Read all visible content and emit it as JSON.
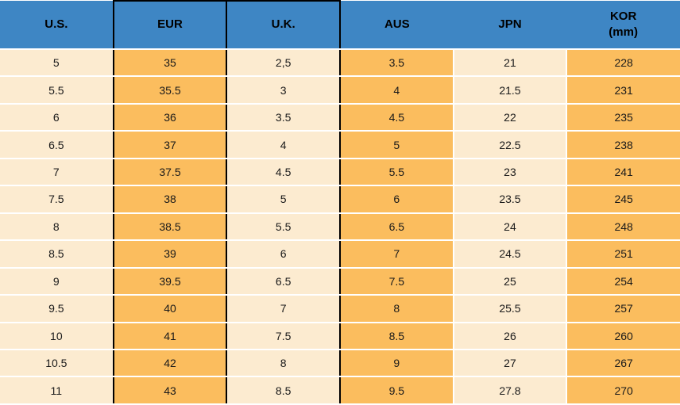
{
  "colors": {
    "header_bg": "#3E86C4",
    "cream_cell": "#FCEBD0",
    "orange_cell": "#FBBD5E",
    "grid_black": "#000000",
    "separator_white": "#FFFFFF",
    "text": "#1A1A1A"
  },
  "chart_data": {
    "type": "table",
    "legend_position": "none",
    "grid": "partial: black grid around EUR and U.K. columns, white row separators elsewhere",
    "columns": [
      {
        "label": "U.S.",
        "sublabel": ""
      },
      {
        "label": "EUR",
        "sublabel": ""
      },
      {
        "label": "U.K.",
        "sublabel": ""
      },
      {
        "label": "AUS",
        "sublabel": ""
      },
      {
        "label": "JPN",
        "sublabel": ""
      },
      {
        "label": "KOR",
        "sublabel": "(mm)"
      }
    ],
    "rows": [
      [
        "5",
        "35",
        "2,5",
        "3.5",
        "21",
        "228"
      ],
      [
        "5.5",
        "35.5",
        "3",
        "4",
        "21.5",
        "231"
      ],
      [
        "6",
        "36",
        "3.5",
        "4.5",
        "22",
        "235"
      ],
      [
        "6.5",
        "37",
        "4",
        "5",
        "22.5",
        "238"
      ],
      [
        "7",
        "37.5",
        "4.5",
        "5.5",
        "23",
        "241"
      ],
      [
        "7.5",
        "38",
        "5",
        "6",
        "23.5",
        "245"
      ],
      [
        "8",
        "38.5",
        "5.5",
        "6.5",
        "24",
        "248"
      ],
      [
        "8.5",
        "39",
        "6",
        "7",
        "24.5",
        "251"
      ],
      [
        "9",
        "39.5",
        "6.5",
        "7.5",
        "25",
        "254"
      ],
      [
        "9.5",
        "40",
        "7",
        "8",
        "25.5",
        "257"
      ],
      [
        "10",
        "41",
        "7.5",
        "8.5",
        "26",
        "260"
      ],
      [
        "10.5",
        "42",
        "8",
        "9",
        "27",
        "267"
      ],
      [
        "11",
        "43",
        "8.5",
        "9.5",
        "27.8",
        "270"
      ]
    ]
  }
}
